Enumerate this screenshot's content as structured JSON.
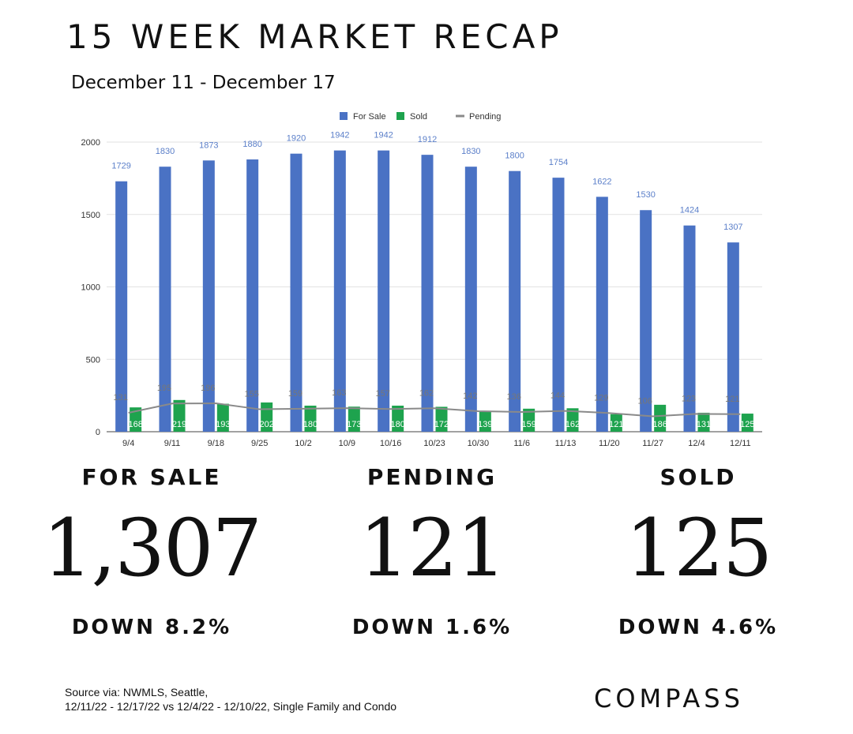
{
  "header": {
    "title": "15 WEEK MARKET RECAP",
    "subtitle": "December 11 - December 17"
  },
  "chart_data": {
    "type": "bar",
    "categories": [
      "9/4",
      "9/11",
      "9/18",
      "9/25",
      "10/2",
      "10/9",
      "10/16",
      "10/23",
      "10/30",
      "11/6",
      "11/13",
      "11/20",
      "11/27",
      "12/4",
      "12/11"
    ],
    "series": [
      {
        "name": "For Sale",
        "kind": "bar",
        "color": "#4a72c4",
        "values": [
          1729,
          1830,
          1873,
          1880,
          1920,
          1942,
          1942,
          1912,
          1830,
          1800,
          1754,
          1622,
          1530,
          1424,
          1307
        ]
      },
      {
        "name": "Sold",
        "kind": "bar",
        "color": "#1ea34e",
        "values": [
          168,
          219,
          193,
          202,
          180,
          173,
          180,
          172,
          139,
          159,
          162,
          121,
          186,
          131,
          125
        ]
      },
      {
        "name": "Pending",
        "kind": "line",
        "color": "#8a8a8a",
        "values": [
          131,
          195,
          196,
          155,
          159,
          163,
          157,
          162,
          142,
          136,
          144,
          129,
          106,
          123,
          121
        ]
      }
    ],
    "ylim": [
      0,
      2000
    ],
    "yticks": [
      0,
      500,
      1000,
      1500,
      2000
    ],
    "grid": true,
    "legend_position": "top-center"
  },
  "stats": [
    {
      "label": "FOR SALE",
      "value": "1,307",
      "change": "DOWN 8.2%"
    },
    {
      "label": "PENDING",
      "value": "121",
      "change": "DOWN 1.6%"
    },
    {
      "label": "SOLD",
      "value": "125",
      "change": "DOWN 4.6%"
    }
  ],
  "footer": {
    "source_line1": "Source via: NWMLS, Seattle,",
    "source_line2": "12/11/22 - 12/17/22 vs 12/4/22 - 12/10/22, Single Family and Condo",
    "logo": "COMPASS"
  }
}
